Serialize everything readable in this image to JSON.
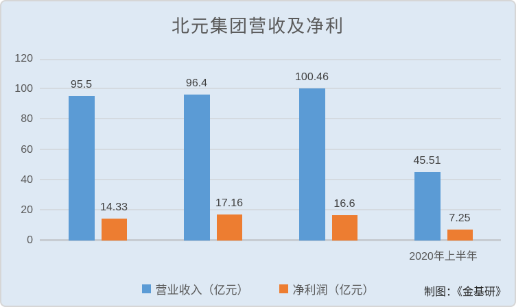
{
  "chart": {
    "title": "北元集团营收及净利",
    "credit": "制图：《金基研》"
  },
  "chart_data": {
    "type": "bar",
    "title": "北元集团营收及净利",
    "categories": [
      "",
      "",
      "",
      "2020年上半年"
    ],
    "series": [
      {
        "name": "营业收入（亿元）",
        "color": "#5B9BD5",
        "values": [
          95.5,
          96.4,
          100.46,
          45.51
        ]
      },
      {
        "name": "净利润（亿元）",
        "color": "#ED7D31",
        "values": [
          14.33,
          17.16,
          16.6,
          7.25
        ]
      }
    ],
    "ylim": [
      0,
      120
    ],
    "y_ticks": [
      0,
      20,
      40,
      60,
      80,
      100,
      120
    ],
    "grid": true,
    "legend_position": "bottom",
    "colors": {
      "background": "#DEE9F4",
      "gridline": "#D4DAE0",
      "axis_line": "#C7CCD2",
      "axis_text": "#595959",
      "value_label": "#404040",
      "credit_text": "#262626"
    }
  }
}
